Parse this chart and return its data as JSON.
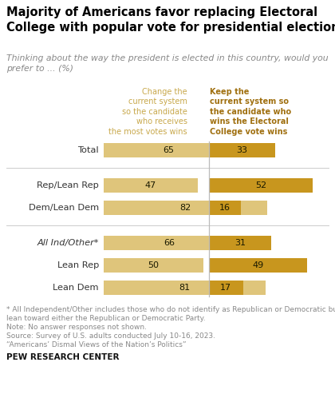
{
  "title": "Majority of Americans favor replacing Electoral\nCollege with popular vote for presidential elections",
  "subtitle": "Thinking about the way the president is elected in this country, would you\nprefer to ... (%)",
  "col1_header": "Change the\ncurrent system\nso the candidate\nwho receives\nthe most votes wins",
  "col2_header": "Keep the\ncurrent system so\nthe candidate who\nwins the Electoral\nCollege vote wins",
  "categories": [
    "Total",
    "Rep/Lean Rep",
    "Dem/Lean Dem",
    "All Ind/Other*",
    "Lean Rep",
    "Lean Dem"
  ],
  "italic_rows": [
    3
  ],
  "change_values": [
    65,
    47,
    82,
    66,
    50,
    81
  ],
  "keep_values": [
    33,
    52,
    16,
    31,
    49,
    17
  ],
  "color_change": "#dfc57b",
  "color_keep": "#c8961e",
  "separator_after_idx": [
    0,
    2
  ],
  "footnote_line1": "* All Independent/Other includes those who do not identify as Republican or Democratic but",
  "footnote_line2": "lean toward either the Republican or Democratic Party.",
  "footnote_line3": "Note: No answer responses not shown.",
  "footnote_line4": "Source: Survey of U.S. adults conducted July 10-16, 2023.",
  "footnote_line5": "“Americans’ Dismal Views of the Nation’s Politics”",
  "footer_label": "PEW RESEARCH CENTER",
  "background_color": "#ffffff",
  "col1_color": "#c8a84b",
  "col2_color": "#a07010",
  "footnote_color": "#888888",
  "title_color": "#000000",
  "label_color": "#333333"
}
